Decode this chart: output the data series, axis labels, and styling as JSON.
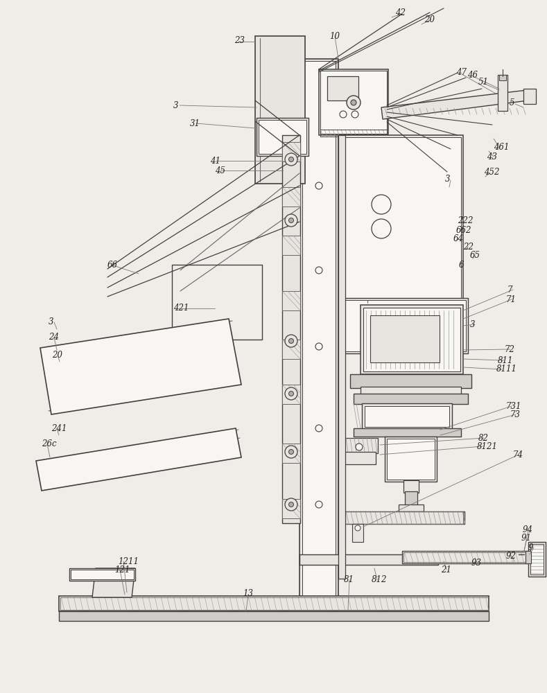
{
  "bg_color": "#f0ede8",
  "lc": "#404040",
  "lc2": "#666666",
  "lc3": "#999999",
  "figsize": [
    7.89,
    10.0
  ],
  "dpi": 100
}
